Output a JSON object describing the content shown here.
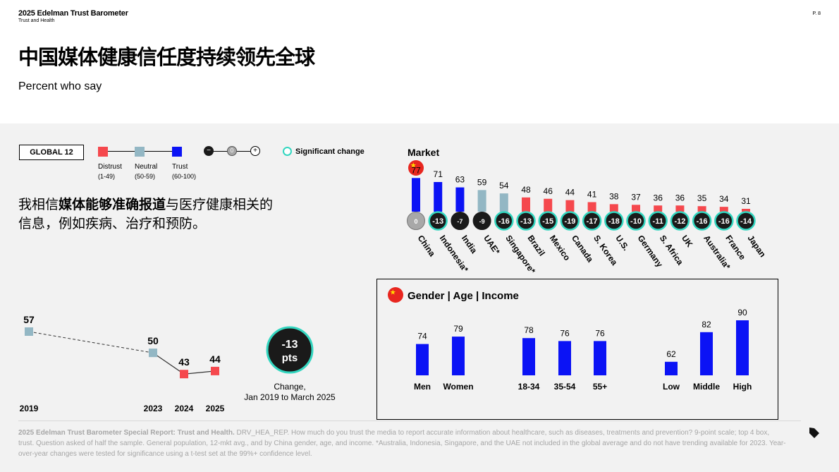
{
  "header": {
    "brand": "2025 Edelman Trust Barometer",
    "brand_sub": "Trust and Health",
    "page_num": "P. 8",
    "title": "中国媒体健康信任度持续领先全球",
    "subtitle": "Percent who say"
  },
  "legend": {
    "global_label": "GLOBAL 12",
    "distrust": "Distrust",
    "distrust_range": "(1-49)",
    "neutral": "Neutral",
    "neutral_range": "(50-59)",
    "trust": "Trust",
    "trust_range": "(60-100)",
    "minus_glyph": "−",
    "zero_glyph": "0",
    "plus_glyph": "+",
    "significant": "Significant change"
  },
  "question": {
    "pre": "我相信",
    "bold": "媒体能够准确报道",
    "post": "与医疗健康相关的",
    "line2": "信息，例如疾病、治疗和预防。"
  },
  "colors": {
    "distrust": "#f5484d",
    "neutral": "#93b7c4",
    "trust": "#0b13f5",
    "dark": "#1a1a1a",
    "china_change": "#a8a8a8",
    "significant_ring": "#33d6c0"
  },
  "market_label": "Market",
  "chart_data": [
    {
      "type": "bar",
      "categories": [
        "China",
        "Indonesia*",
        "India",
        "UAE*",
        "Singapore*",
        "Brazil",
        "Mexico",
        "Canada",
        "S. Korea",
        "U.S.",
        "Germany",
        "S. Africa",
        "UK",
        "Australia*",
        "France",
        "Japan"
      ],
      "values": [
        77,
        71,
        63,
        59,
        54,
        48,
        46,
        44,
        41,
        38,
        37,
        36,
        36,
        35,
        34,
        31
      ],
      "changes": [
        "0",
        "-13",
        "-7",
        "-9",
        "-16",
        "-13",
        "-15",
        "-19",
        "-17",
        "-18",
        "-10",
        "-11",
        "-12",
        "-16",
        "-16",
        "-14"
      ],
      "change_significant": [
        false,
        true,
        false,
        false,
        true,
        true,
        true,
        true,
        true,
        true,
        true,
        true,
        true,
        true,
        true,
        true
      ],
      "xlabel": "Market"
    },
    {
      "type": "line",
      "x": [
        "2019",
        "2023",
        "2024",
        "2025"
      ],
      "y": [
        57,
        50,
        43,
        44
      ],
      "change_value": "-13",
      "change_unit": "pts",
      "change_caption": "Change,",
      "change_caption2": "Jan 2019 to March 2025"
    },
    {
      "type": "bar",
      "title": "Gender | Age | Income",
      "groups": [
        {
          "categories": [
            "Men",
            "Women"
          ],
          "values": [
            74,
            79
          ]
        },
        {
          "categories": [
            "18-34",
            "35-54",
            "55+"
          ],
          "values": [
            78,
            76,
            76
          ]
        },
        {
          "categories": [
            "Low",
            "Middle",
            "High"
          ],
          "values": [
            62,
            82,
            90
          ]
        }
      ]
    }
  ],
  "footnote": {
    "bold": "2025 Edelman Trust Barometer Special Report: Trust and Health.",
    "text": " DRV_HEA_REP. How much do you trust the media to report accurate information about healthcare, such as diseases, treatments and prevention? 9-point scale; top 4 box, trust. Question asked of half the sample. General population, 12-mkt avg., and by China gender, age, and income. *Australia, Indonesia, Singapore, and the UAE not included in the global average and do not have trending available for 2023. Year-over-year changes were tested for significance using a t-test set at the 99%+ confidence level."
  }
}
